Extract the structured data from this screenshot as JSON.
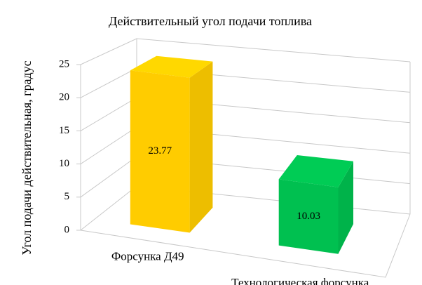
{
  "chart_data": {
    "type": "bar3d",
    "title": "Действительный угол подачи топлива",
    "y_label": "Угол подачи действительная, градус",
    "categories": [
      "Форсунка Д49",
      "Технологическая форсунка"
    ],
    "values": [
      23.77,
      10.03
    ],
    "colors": [
      "#ffcc00",
      "#00c050"
    ],
    "ylim": [
      0,
      25
    ],
    "yticks": [
      0,
      5,
      10,
      15,
      20,
      25
    ],
    "grid": true
  }
}
